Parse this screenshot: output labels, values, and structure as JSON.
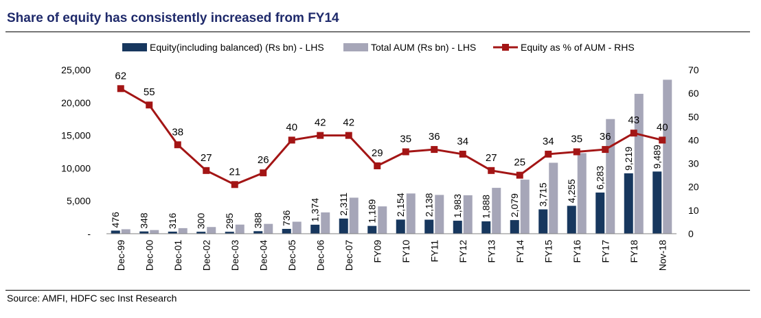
{
  "title": "Share of equity has consistently increased from FY14",
  "source": "Source: AMFI, HDFC sec Inst Research",
  "chart_data": {
    "type": "bar",
    "categories": [
      "Dec-99",
      "Dec-00",
      "Dec-01",
      "Dec-02",
      "Dec-03",
      "Dec-04",
      "Dec-05",
      "Dec-06",
      "Dec-07",
      "FY09",
      "FY10",
      "FY11",
      "FY12",
      "FY13",
      "FY14",
      "FY15",
      "FY16",
      "FY17",
      "FY18",
      "Nov-18"
    ],
    "series": [
      {
        "name": "Equity(including balanced) (Rs bn) - LHS",
        "type": "bar",
        "axis": "left",
        "color": "#17375e",
        "values": [
          476,
          348,
          316,
          300,
          295,
          388,
          736,
          1374,
          2311,
          1189,
          2154,
          2138,
          1983,
          1888,
          2079,
          3715,
          4255,
          6283,
          9219,
          9489
        ],
        "labels": [
          "476",
          "348",
          "316",
          "300",
          "295",
          "388",
          "736",
          "1,374",
          "2,311",
          "1,189",
          "2,154",
          "2,138",
          "1,983",
          "1,888",
          "2,079",
          "3,715",
          "4,255",
          "6,283",
          "9,219",
          "9,489"
        ]
      },
      {
        "name": "Total AUM (Rs bn) - LHS",
        "type": "bar",
        "axis": "left",
        "color": "#a6a6b8",
        "values": [
          680,
          560,
          850,
          1020,
          1390,
          1500,
          1830,
          3250,
          5500,
          4170,
          6140,
          5920,
          5870,
          7000,
          8250,
          10830,
          12300,
          17500,
          21350,
          23500
        ]
      },
      {
        "name": "Equity as % of AUM - RHS",
        "type": "line",
        "axis": "right",
        "color": "#a31515",
        "values": [
          62,
          55,
          38,
          27,
          21,
          26,
          40,
          42,
          42,
          29,
          35,
          36,
          34,
          27,
          25,
          34,
          35,
          36,
          43,
          40
        ],
        "labels": [
          "62",
          "55",
          "38",
          "27",
          "21",
          "26",
          "40",
          "42",
          "42",
          "29",
          "35",
          "36",
          "34",
          "27",
          "25",
          "34",
          "35",
          "36",
          "43",
          "40"
        ]
      }
    ],
    "y_left": {
      "min": 0,
      "max": 25000,
      "step": 5000,
      "tick_labels": [
        "-",
        "5,000",
        "10,000",
        "15,000",
        "20,000",
        "25,000"
      ]
    },
    "y_right": {
      "min": 0,
      "max": 70,
      "step": 10,
      "tick_labels": [
        "0",
        "10",
        "20",
        "30",
        "40",
        "50",
        "60",
        "70"
      ]
    },
    "grid": false,
    "legend_position": "top"
  }
}
